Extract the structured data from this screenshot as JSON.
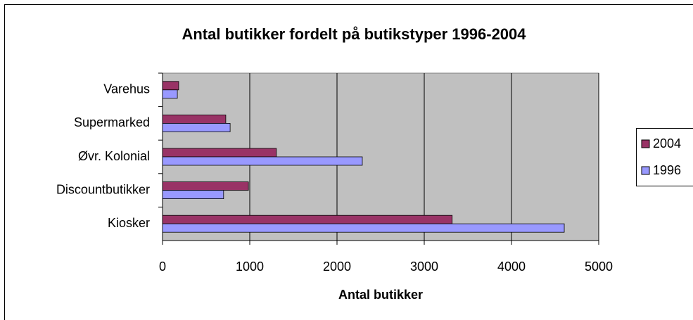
{
  "chart_data": {
    "type": "bar",
    "orientation": "horizontal",
    "title": "Antal butikker fordelt på butikstyper 1996-2004",
    "x_label": "Antal butikker",
    "categories": [
      "Varehus",
      "Supermarked",
      "Øvr. Kolonial",
      "Discountbutikker",
      "Kiosker"
    ],
    "series": [
      {
        "name": "2004",
        "color": "#993366",
        "values": [
          185,
          725,
          1305,
          985,
          3320
        ]
      },
      {
        "name": "1996",
        "color": "#9999ff",
        "values": [
          170,
          775,
          2290,
          700,
          4605
        ]
      }
    ],
    "xlim": [
      0,
      5000
    ],
    "xticks": [
      0,
      1000,
      2000,
      3000,
      4000,
      5000
    ],
    "grid": true,
    "legend": "right",
    "plot_background": "#c0c0c0"
  }
}
